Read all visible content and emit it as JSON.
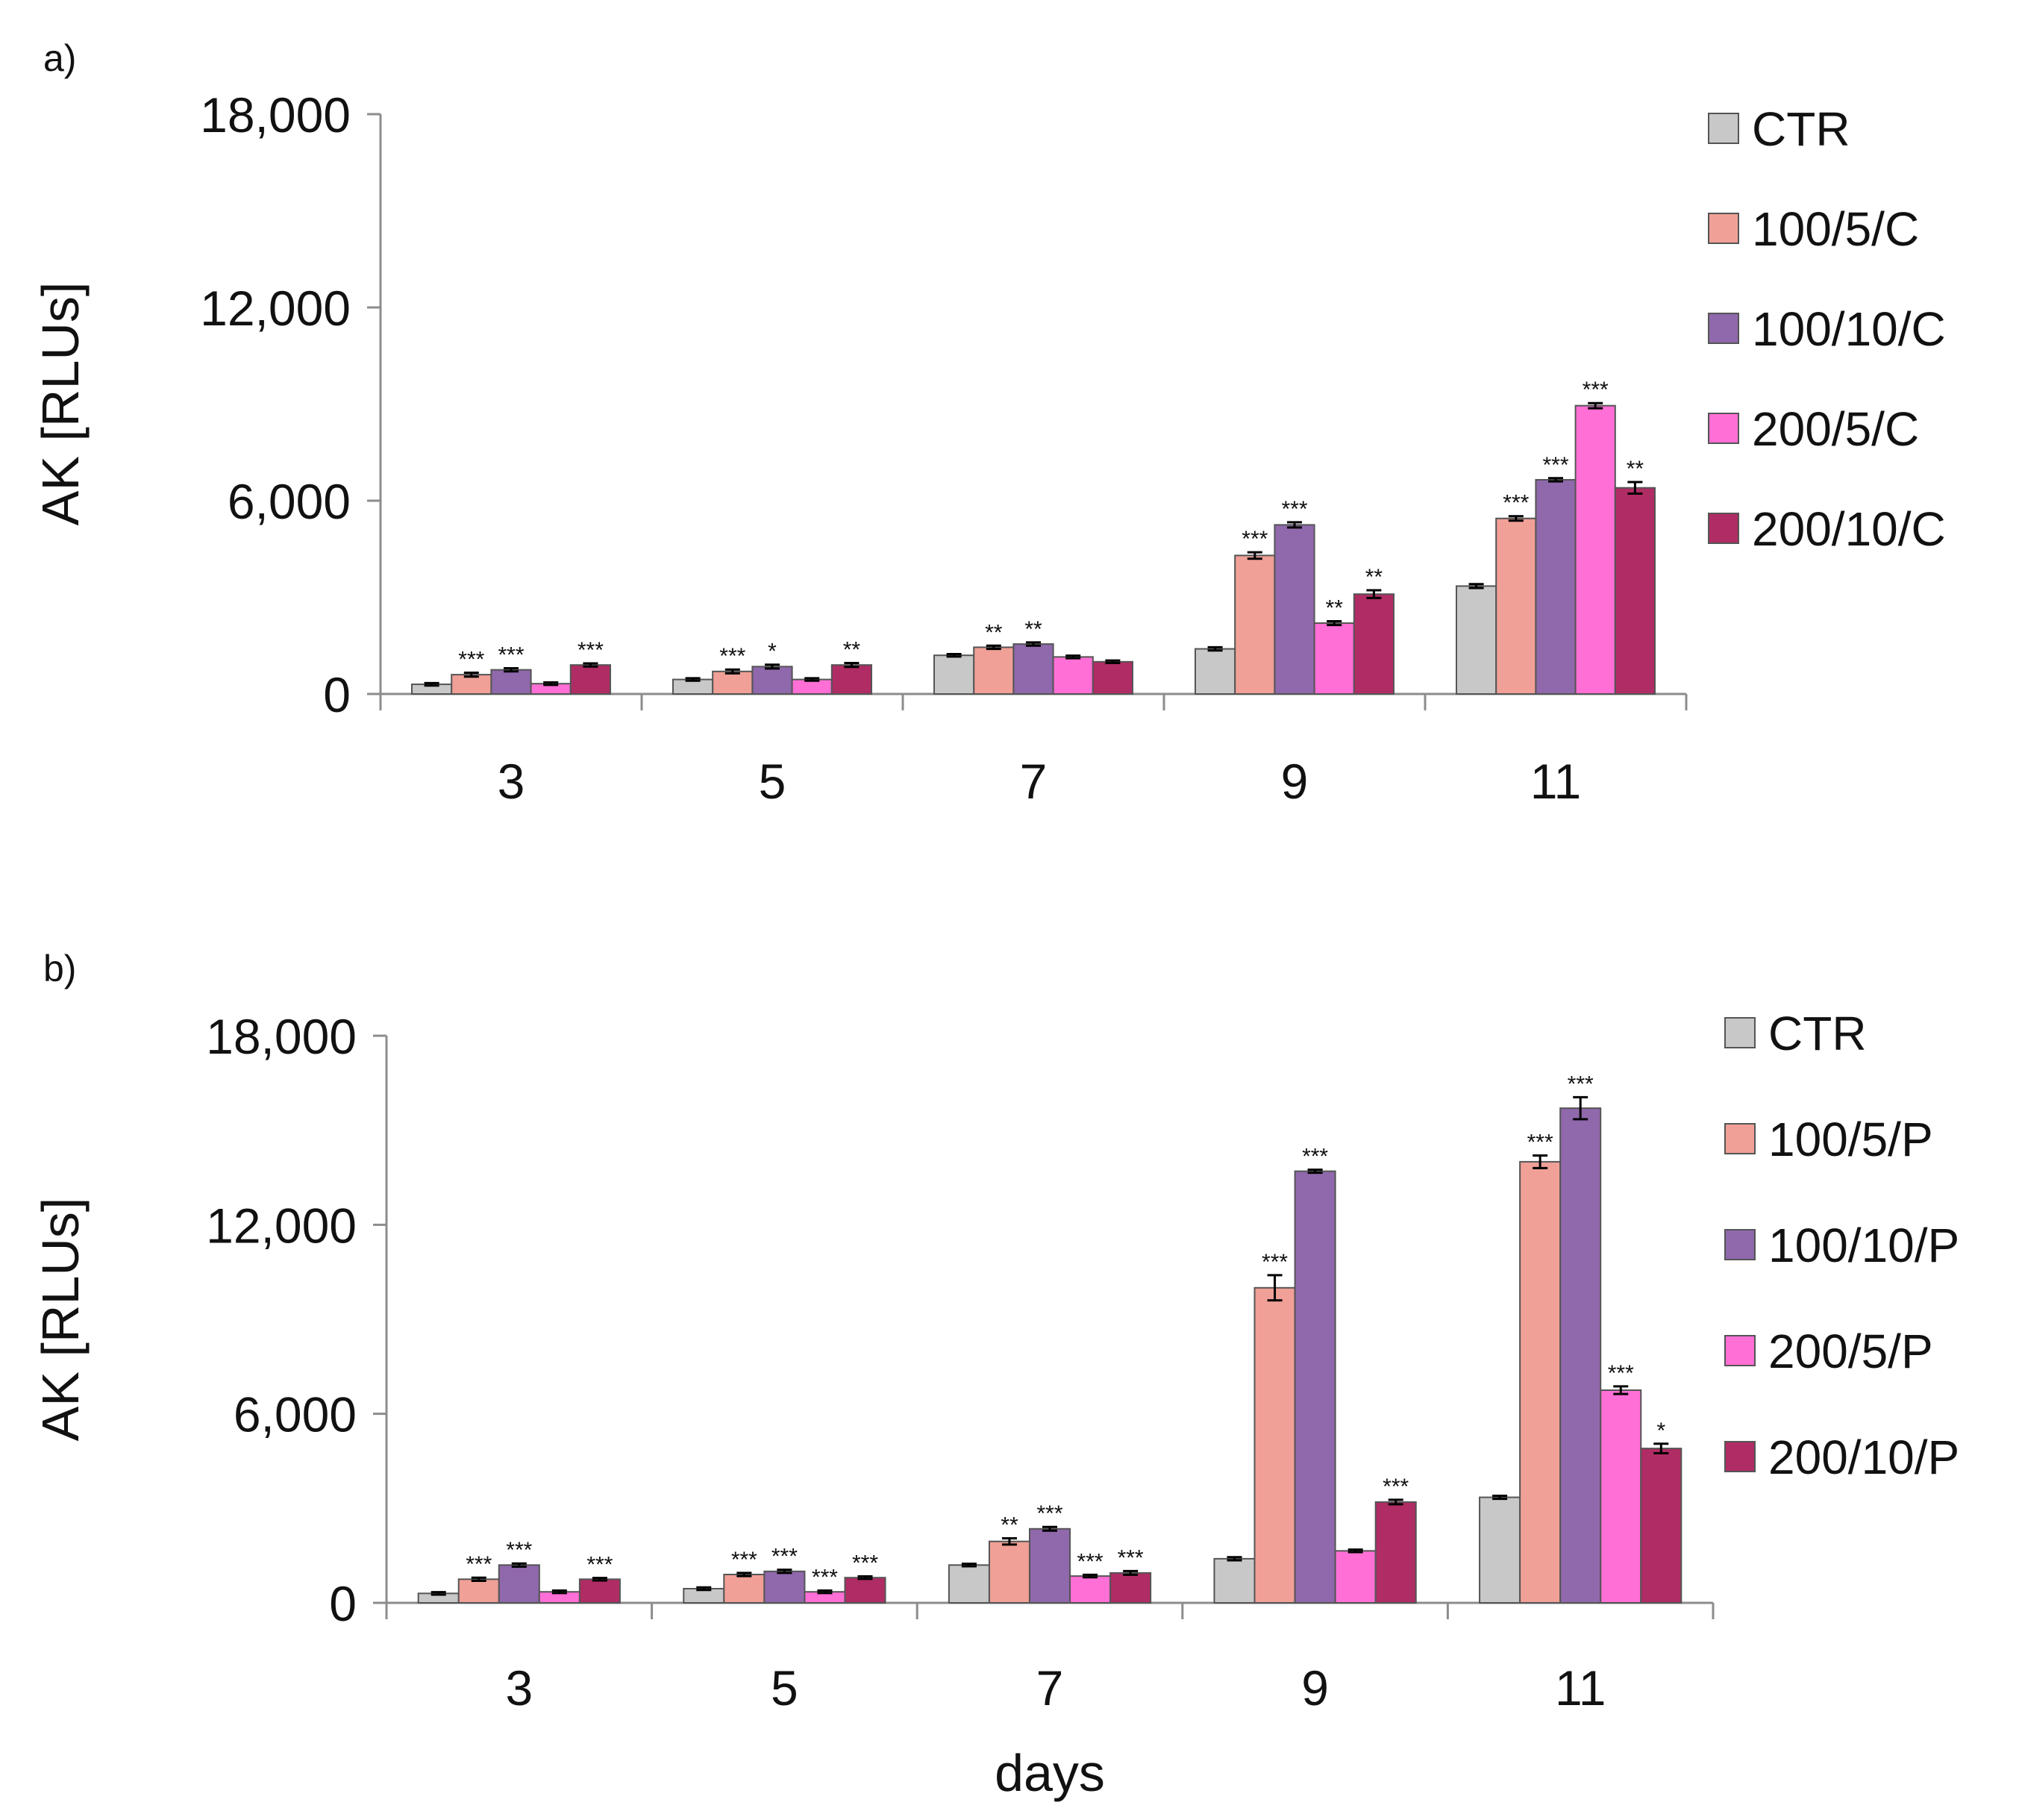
{
  "chart_data": [
    {
      "type": "bar",
      "panel_label": "a)",
      "title": "",
      "xlabel": "",
      "ylabel": "AK [RLUs]",
      "ylim": [
        0,
        18000
      ],
      "yticks": [
        0,
        6000,
        12000,
        18000
      ],
      "ytick_labels": [
        "0",
        "6,000",
        "12,000",
        "18,000"
      ],
      "categories": [
        "3",
        "5",
        "7",
        "9",
        "11"
      ],
      "legend_position": "right",
      "series": [
        {
          "name": "CTR",
          "color": "#c8c8c8",
          "values": [
            300,
            450,
            1200,
            1400,
            3350
          ],
          "errors": [
            40,
            40,
            40,
            50,
            60
          ],
          "significance": [
            "",
            "",
            "",
            "",
            ""
          ]
        },
        {
          "name": "100/5/C",
          "color": "#f0a097",
          "values": [
            600,
            700,
            1450,
            4300,
            5450
          ],
          "errors": [
            60,
            60,
            50,
            100,
            70
          ],
          "significance": [
            "***",
            "***",
            "**",
            "***",
            "***"
          ]
        },
        {
          "name": "100/10/C",
          "color": "#9068ac",
          "values": [
            750,
            850,
            1550,
            5250,
            6650
          ],
          "errors": [
            50,
            60,
            50,
            80,
            50
          ],
          "significance": [
            "***",
            "*",
            "**",
            "***",
            "***"
          ]
        },
        {
          "name": "200/5/C",
          "color": "#ff6fd6",
          "values": [
            320,
            450,
            1150,
            2200,
            8950
          ],
          "errors": [
            40,
            40,
            40,
            60,
            80
          ],
          "significance": [
            "",
            "",
            "",
            "**",
            "***"
          ]
        },
        {
          "name": "200/10/C",
          "color": "#b02c64",
          "values": [
            900,
            900,
            1000,
            3100,
            6400
          ],
          "errors": [
            50,
            60,
            40,
            120,
            180
          ],
          "significance": [
            "***",
            "**",
            "",
            "**",
            "**"
          ]
        }
      ]
    },
    {
      "type": "bar",
      "panel_label": "b)",
      "title": "",
      "xlabel": "days",
      "ylabel": "AK [RLUs]",
      "ylim": [
        0,
        18000
      ],
      "yticks": [
        0,
        6000,
        12000,
        18000
      ],
      "ytick_labels": [
        "0",
        "6,000",
        "12,000",
        "18,000"
      ],
      "categories": [
        "3",
        "5",
        "7",
        "9",
        "11"
      ],
      "legend_position": "right",
      "series": [
        {
          "name": "CTR",
          "color": "#c8c8c8",
          "values": [
            300,
            450,
            1200,
            1400,
            3350
          ],
          "errors": [
            40,
            40,
            40,
            50,
            50
          ],
          "significance": [
            "",
            "",
            "",
            "",
            ""
          ]
        },
        {
          "name": "100/5/P",
          "color": "#f0a097",
          "values": [
            750,
            900,
            1950,
            10000,
            14000
          ],
          "errors": [
            50,
            50,
            100,
            400,
            200
          ],
          "significance": [
            "***",
            "***",
            "**",
            "***",
            "***"
          ]
        },
        {
          "name": "100/10/P",
          "color": "#9068ac",
          "values": [
            1200,
            1000,
            2350,
            13700,
            15700
          ],
          "errors": [
            50,
            50,
            60,
            50,
            350
          ],
          "significance": [
            "***",
            "***",
            "***",
            "***",
            "***"
          ]
        },
        {
          "name": "200/5/P",
          "color": "#ff6fd6",
          "values": [
            350,
            350,
            850,
            1650,
            6750
          ],
          "errors": [
            40,
            40,
            40,
            40,
            120
          ],
          "significance": [
            "",
            "***",
            "***",
            "",
            "***"
          ]
        },
        {
          "name": "200/10/P",
          "color": "#b02c64",
          "values": [
            750,
            800,
            950,
            3200,
            4900
          ],
          "errors": [
            40,
            40,
            60,
            70,
            150
          ],
          "significance": [
            "***",
            "***",
            "***",
            "***",
            "*"
          ]
        }
      ]
    }
  ]
}
